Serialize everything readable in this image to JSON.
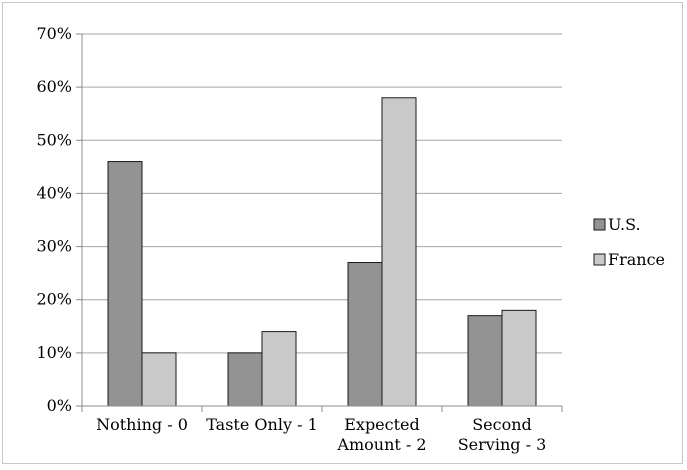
{
  "chart_data": {
    "type": "bar",
    "categories": [
      [
        "Nothing  - 0"
      ],
      [
        "Taste Only - 1"
      ],
      [
        "Expected",
        "Amount - 2"
      ],
      [
        "Second",
        "Serving - 3"
      ]
    ],
    "series": [
      {
        "name": "U.S.",
        "values": [
          46,
          10,
          27,
          17
        ],
        "color": "#939393"
      },
      {
        "name": "France",
        "values": [
          10,
          14,
          58,
          18
        ],
        "color": "#c9c9c9"
      }
    ],
    "y_ticks": [
      "0%",
      "10%",
      "20%",
      "30%",
      "40%",
      "50%",
      "60%",
      "70%"
    ],
    "ylim": [
      0,
      70
    ],
    "y_unit": "%",
    "grid": true,
    "legend_position": "right",
    "title": "",
    "xlabel": "",
    "ylabel": ""
  }
}
